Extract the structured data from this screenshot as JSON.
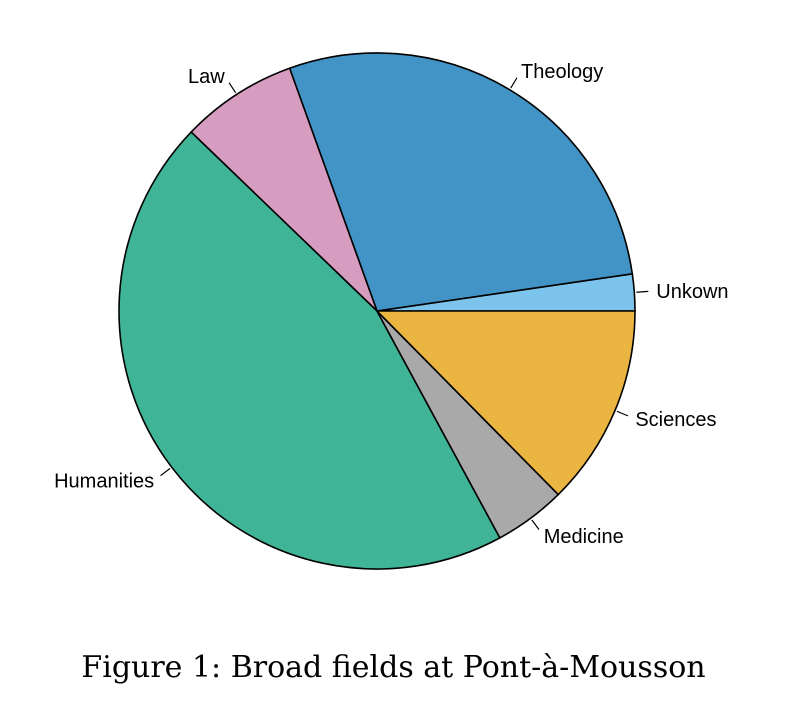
{
  "chart_data": {
    "type": "pie",
    "start_angle_deg": 0,
    "direction": "counterclockwise",
    "slices": [
      {
        "label": "Unkown",
        "value": 2.3,
        "color": "#7DC4EC"
      },
      {
        "label": "Theology",
        "value": 28.2,
        "color": "#4394C6"
      },
      {
        "label": "Law",
        "value": 7.3,
        "color": "#D79DC0"
      },
      {
        "label": "Humanities",
        "value": 45.1,
        "color": "#40B497"
      },
      {
        "label": "Medicine",
        "value": 4.5,
        "color": "#A9A9A9"
      },
      {
        "label": "Sciences",
        "value": 12.6,
        "color": "#EBB541"
      }
    ]
  },
  "caption": "Figure 1: Broad fields at Pont-à-Mousson"
}
